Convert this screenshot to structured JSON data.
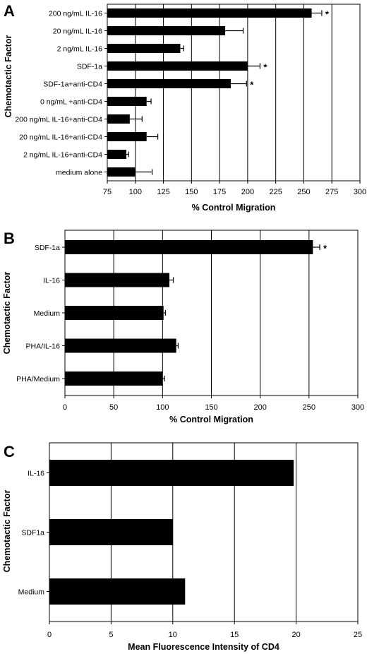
{
  "chart_data": [
    {
      "type": "bar",
      "orientation": "horizontal",
      "panel": "A",
      "ylabel": "Chemotactic Factor",
      "xlabel": "% Control Migration",
      "xlim": [
        75,
        300
      ],
      "xticks": [
        75,
        100,
        125,
        150,
        175,
        200,
        225,
        250,
        275,
        300
      ],
      "grid": true,
      "categories": [
        "200 ng/mL IL-16",
        "20 ng/mL IL-16",
        "2 ng/mL IL-16",
        "SDF-1a",
        "SDF-1a+anti-CD4",
        "0 ng/mL +anti-CD4",
        "200 ng/mL IL-16+anti-CD4",
        "20 ng/mL IL-16+anti-CD4",
        "2 ng/mL IL-16+anti-CD4",
        "medium alone"
      ],
      "values": [
        257,
        180,
        140,
        200,
        185,
        110,
        95,
        110,
        92,
        100
      ],
      "errors": [
        9,
        16,
        3,
        11,
        14,
        4,
        11,
        10,
        2,
        15
      ],
      "significant": [
        true,
        false,
        false,
        true,
        true,
        false,
        false,
        false,
        false,
        false
      ],
      "significance_marker": "*"
    },
    {
      "type": "bar",
      "orientation": "horizontal",
      "panel": "B",
      "ylabel": "Chemotactic Factor",
      "xlabel": "% Control Migration",
      "xlim": [
        0,
        300
      ],
      "xticks": [
        0,
        50,
        100,
        150,
        200,
        250,
        300
      ],
      "grid": true,
      "categories": [
        "SDF-1a",
        "IL-16",
        "Medium",
        "PHA/IL-16",
        "PHA/Medium"
      ],
      "values": [
        254,
        107,
        101,
        114,
        100
      ],
      "errors": [
        7,
        4,
        2,
        2,
        2
      ],
      "significant": [
        true,
        false,
        false,
        false,
        false
      ],
      "significance_marker": "*"
    },
    {
      "type": "bar",
      "orientation": "horizontal",
      "panel": "C",
      "ylabel": "Chemotactic Factor",
      "xlabel": "Mean Fluorescence Intensity of CD4",
      "xlim": [
        0,
        25
      ],
      "xticks": [
        0,
        5,
        10,
        15,
        20,
        25
      ],
      "grid": true,
      "categories": [
        "IL-16",
        "SDF1a",
        "Medium"
      ],
      "values": [
        19.8,
        10.0,
        11.0
      ]
    }
  ]
}
